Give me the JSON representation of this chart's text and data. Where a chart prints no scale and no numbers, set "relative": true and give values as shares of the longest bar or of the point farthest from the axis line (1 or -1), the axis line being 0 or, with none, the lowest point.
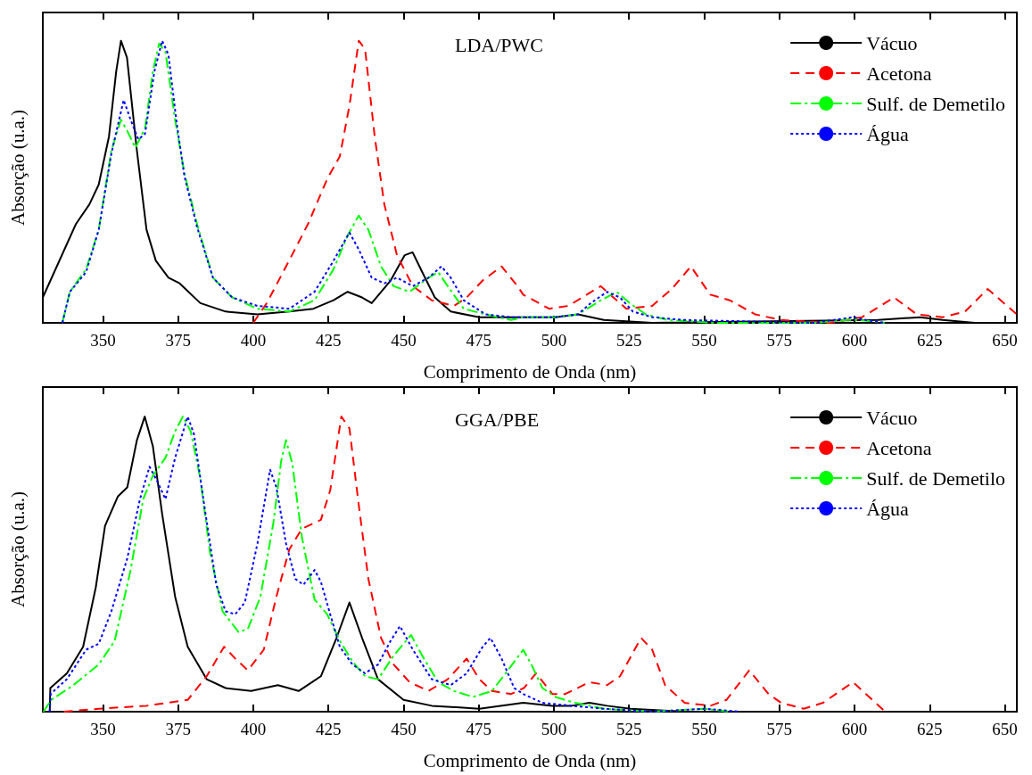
{
  "chart_data": [
    {
      "type": "line",
      "title": "LDA/PWC",
      "xlabel": "Comprimento de Onda (nm)",
      "ylabel": "Absorção (u.a.)",
      "relative": true,
      "xlim": [
        330,
        654
      ],
      "xticks": [
        350,
        375,
        400,
        425,
        450,
        475,
        500,
        525,
        550,
        575,
        600,
        625,
        650
      ],
      "legend": "top right",
      "marker": "none",
      "series": [
        {
          "name": "Vácuo",
          "color": "#000000",
          "line_style": "solid",
          "x": [
            330,
            341,
            345.5,
            348.6,
            352,
            354.4,
            356,
            358,
            361.3,
            364.5,
            367.6,
            371.8,
            375.5,
            382.4,
            390.8,
            401.4,
            412,
            420,
            426.7,
            431.4,
            436.2,
            439.4,
            445.7,
            450.4,
            453,
            456.2,
            460.4,
            465.7,
            475.2,
            489.8,
            500.5,
            508,
            516.6,
            532.7,
            607.8,
            621.8,
            629.3,
            640,
            652
          ],
          "values": [
            0.09,
            0.35,
            0.42,
            0.49,
            0.66,
            0.89,
            1,
            0.94,
            0.61,
            0.33,
            0.22,
            0.16,
            0.14,
            0.07,
            0.04,
            0.03,
            0.04,
            0.05,
            0.08,
            0.11,
            0.09,
            0.07,
            0.15,
            0.24,
            0.25,
            0.18,
            0.09,
            0.04,
            0.02,
            0.02,
            0.02,
            0.03,
            0.01,
            0,
            0.01,
            0.02,
            0.01,
            0,
            0
          ]
        },
        {
          "name": "Acetona",
          "color": "#ff0000",
          "line_style": "dashed",
          "x": [
            400,
            404.5,
            411.9,
            418.2,
            424.6,
            428.8,
            432,
            435.1,
            437.2,
            440.4,
            443.6,
            447.8,
            453.1,
            459.4,
            466.8,
            471,
            476.3,
            482.6,
            487.9,
            489.8,
            498.4,
            504.8,
            515.6,
            519.8,
            524.1,
            532.7,
            539.2,
            545.6,
            552,
            558.5,
            567,
            575.6,
            591.7,
            602.5,
            613.2,
            620.7,
            629.3,
            636.8,
            644.3,
            654
          ],
          "values": [
            0,
            0.07,
            0.22,
            0.35,
            0.51,
            0.59,
            0.77,
            1,
            0.97,
            0.66,
            0.42,
            0.24,
            0.13,
            0.08,
            0.06,
            0.09,
            0.15,
            0.2,
            0.13,
            0.1,
            0.05,
            0.06,
            0.13,
            0.09,
            0.05,
            0.06,
            0.12,
            0.2,
            0.1,
            0.08,
            0.03,
            0.01,
            0,
            0.02,
            0.09,
            0.03,
            0.02,
            0.04,
            0.12,
            0.03
          ]
        },
        {
          "name": "Sulf. de Demetilo",
          "color": "#00ff00",
          "line_style": "dashdot",
          "x": [
            336.5,
            339,
            344.4,
            348.6,
            352.8,
            356,
            358.1,
            360.8,
            364,
            366.6,
            368.7,
            370.8,
            374,
            377.1,
            381.3,
            386.6,
            393,
            401.4,
            412,
            420.4,
            426.7,
            431.4,
            435.1,
            438.3,
            442.5,
            446.7,
            452,
            458.3,
            461.5,
            464.7,
            470,
            477.3,
            485.8,
            489.8,
            500.5,
            508,
            515.6,
            520.9,
            525.2,
            530.6,
            538,
            554.2,
            586.4,
            597.3,
            601.6,
            610
          ],
          "values": [
            0,
            0.11,
            0.19,
            0.33,
            0.61,
            0.72,
            0.68,
            0.62,
            0.69,
            0.89,
            0.99,
            0.96,
            0.72,
            0.53,
            0.35,
            0.16,
            0.09,
            0.05,
            0.04,
            0.08,
            0.19,
            0.31,
            0.38,
            0.33,
            0.2,
            0.13,
            0.11,
            0.16,
            0.18,
            0.13,
            0.05,
            0.03,
            0.01,
            0.02,
            0.02,
            0.03,
            0.08,
            0.11,
            0.07,
            0.03,
            0.01,
            0,
            0,
            0.01,
            0.01,
            0
          ]
        },
        {
          "name": "Água",
          "color": "#0000ff",
          "line_style": "dotted",
          "x": [
            336.5,
            339,
            344.4,
            348.6,
            352.8,
            356.9,
            359.2,
            361.8,
            364,
            367.1,
            369.7,
            371.8,
            374.5,
            377.1,
            381.3,
            386.6,
            393,
            401.4,
            412,
            420.4,
            426.7,
            432,
            435.1,
            439.4,
            443.6,
            447.8,
            453.1,
            458.3,
            462.6,
            465.7,
            470,
            477.3,
            485.8,
            489.8,
            500.5,
            508,
            512.3,
            517.7,
            522,
            526.3,
            532.7,
            543.5,
            586.4,
            599.5,
            603.8,
            610
          ],
          "values": [
            0,
            0.11,
            0.18,
            0.33,
            0.6,
            0.79,
            0.72,
            0.65,
            0.67,
            0.89,
            1,
            0.95,
            0.71,
            0.52,
            0.34,
            0.16,
            0.09,
            0.06,
            0.05,
            0.11,
            0.22,
            0.32,
            0.26,
            0.16,
            0.14,
            0.16,
            0.13,
            0.16,
            0.2,
            0.16,
            0.08,
            0.03,
            0.02,
            0.02,
            0.02,
            0.03,
            0.07,
            0.11,
            0.09,
            0.04,
            0.02,
            0.01,
            0,
            0.02,
            0.01,
            0
          ]
        }
      ]
    },
    {
      "type": "line",
      "title": "GGA/PBE",
      "xlabel": "Comprimento de Onda (nm)",
      "ylabel": "Absorção (u.a.)",
      "relative": true,
      "xlim": [
        330,
        654
      ],
      "xticks": [
        350,
        375,
        400,
        425,
        450,
        475,
        500,
        525,
        550,
        575,
        600,
        625,
        650
      ],
      "legend": "top right",
      "marker": "none",
      "series": [
        {
          "name": "Vácuo",
          "color": "#000000",
          "line_style": "solid",
          "x": [
            332.3,
            332.5,
            338,
            343.4,
            347.6,
            350.7,
            355,
            358.1,
            361.3,
            363.9,
            366.6,
            369.7,
            374,
            378.2,
            384.5,
            390.8,
            399.3,
            408.2,
            415.1,
            422.5,
            427.7,
            432,
            436.2,
            441.5,
            450,
            459.4,
            475.2,
            489.8,
            499.5,
            505.9,
            511.8,
            517.7,
            525.5,
            543.6,
            652
          ],
          "values": [
            0,
            0.08,
            0.13,
            0.22,
            0.42,
            0.63,
            0.73,
            0.76,
            0.92,
            1,
            0.9,
            0.67,
            0.39,
            0.22,
            0.11,
            0.08,
            0.07,
            0.09,
            0.07,
            0.12,
            0.25,
            0.37,
            0.25,
            0.11,
            0.04,
            0.02,
            0.01,
            0.03,
            0.02,
            0.02,
            0.03,
            0.02,
            0.01,
            0,
            0
          ]
        },
        {
          "name": "Acetona",
          "color": "#ff0000",
          "line_style": "dashed",
          "x": [
            337,
            348.6,
            364.5,
            378.2,
            384.5,
            390.3,
            394,
            398.2,
            403.5,
            407.7,
            412,
            416.2,
            422.5,
            425.6,
            429.3,
            432,
            435.1,
            438.3,
            442.5,
            446.7,
            452,
            458.3,
            464.7,
            471,
            475.2,
            479.4,
            485.8,
            490,
            494.1,
            499.5,
            503.8,
            511.8,
            517.7,
            522,
            529,
            532.7,
            537,
            543.5,
            552.1,
            557.4,
            565,
            571.4,
            575.6,
            583.1,
            589.5,
            599.5,
            603.8,
            610.2
          ],
          "values": [
            0,
            0.01,
            0.02,
            0.04,
            0.12,
            0.22,
            0.18,
            0.14,
            0.21,
            0.39,
            0.55,
            0.62,
            0.65,
            0.75,
            1,
            0.96,
            0.7,
            0.45,
            0.25,
            0.16,
            0.1,
            0.07,
            0.11,
            0.18,
            0.11,
            0.07,
            0.06,
            0.08,
            0.13,
            0.06,
            0.06,
            0.1,
            0.09,
            0.12,
            0.25,
            0.21,
            0.09,
            0.03,
            0.02,
            0.04,
            0.14,
            0.06,
            0.03,
            0.01,
            0.03,
            0.1,
            0.06,
            0
          ]
        },
        {
          "name": "Sulf. de Demetilo",
          "color": "#00ff00",
          "line_style": "dashdot",
          "x": [
            330.2,
            332.8,
            340.2,
            348.6,
            353.9,
            359.2,
            363.4,
            366.6,
            370.8,
            374,
            376.6,
            379.2,
            382.4,
            385.6,
            389.8,
            395.1,
            398.2,
            402.4,
            406.7,
            409.3,
            410.9,
            413,
            416.2,
            420.4,
            424.6,
            428.8,
            433,
            437.2,
            441.5,
            446.7,
            452.5,
            456.2,
            461.5,
            466.8,
            473.1,
            479.4,
            484.7,
            489.8,
            493,
            496.2,
            500.5,
            507,
            516.6,
            532.7,
            550,
            558.5
          ],
          "values": [
            0,
            0.04,
            0.09,
            0.16,
            0.24,
            0.48,
            0.72,
            0.8,
            0.86,
            0.95,
            1,
            0.95,
            0.79,
            0.54,
            0.34,
            0.27,
            0.28,
            0.39,
            0.64,
            0.85,
            0.92,
            0.84,
            0.59,
            0.38,
            0.33,
            0.24,
            0.17,
            0.12,
            0.11,
            0.19,
            0.26,
            0.19,
            0.1,
            0.07,
            0.05,
            0.07,
            0.14,
            0.21,
            0.15,
            0.08,
            0.05,
            0.03,
            0.01,
            0,
            0.01,
            0
          ]
        },
        {
          "name": "Água",
          "color": "#0000ff",
          "line_style": "dotted",
          "x": [
            332.3,
            332.6,
            338,
            344.4,
            348.6,
            352.8,
            358.1,
            362.3,
            365.5,
            368.1,
            370.8,
            374,
            378.2,
            380.3,
            383.4,
            387.7,
            390.8,
            394,
            397.2,
            401.4,
            405.6,
            407.7,
            410.9,
            414,
            416.7,
            420.4,
            422.5,
            425.6,
            428.8,
            433,
            437.2,
            441.5,
            445.7,
            448.8,
            453.1,
            459.4,
            465.7,
            471,
            476.3,
            478.9,
            482.6,
            486.8,
            489.8,
            496.2,
            505.9,
            516.6,
            532.7,
            550,
            561.8
          ],
          "values": [
            0,
            0.06,
            0.11,
            0.21,
            0.23,
            0.34,
            0.52,
            0.72,
            0.83,
            0.78,
            0.72,
            0.86,
            1,
            0.94,
            0.72,
            0.43,
            0.34,
            0.33,
            0.37,
            0.57,
            0.82,
            0.76,
            0.57,
            0.45,
            0.43,
            0.48,
            0.44,
            0.33,
            0.22,
            0.16,
            0.13,
            0.16,
            0.24,
            0.29,
            0.21,
            0.11,
            0.09,
            0.13,
            0.22,
            0.25,
            0.18,
            0.08,
            0.06,
            0.03,
            0.02,
            0.01,
            0,
            0.01,
            0
          ]
        }
      ]
    }
  ]
}
